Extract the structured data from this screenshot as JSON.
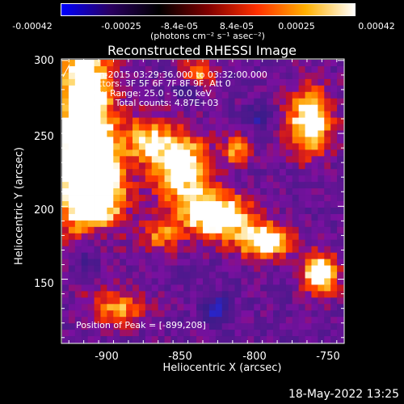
{
  "colorbar": {
    "ticks": [
      "-0.00042",
      "-0.00025",
      "-8.4e-05",
      "8.4e-05",
      "0.00025",
      "0.00042"
    ],
    "tick_values": [
      -0.00042,
      -0.00025,
      -8.4e-05,
      8.4e-05,
      0.00025,
      0.00042
    ],
    "unit_label": "(photons cm⁻² s⁻¹ asec⁻²)",
    "colors": [
      "#0000ff",
      "#2a0060",
      "#000000",
      "#800000",
      "#ff3000",
      "#ffb000",
      "#ffffff"
    ]
  },
  "title": "Reconstructed RHESSI Image",
  "overlay": {
    "time_range": "30-Jan-2015 03:29:36.000 to 03:32:00.000",
    "detectors": "Detectors: 3F 5F 6F 7F 8F 9F, Att 0",
    "energy_range": "Energy Range: 25.0 - 50.0 keV",
    "clean_counts": "Clean     Total counts: 4.87E+03",
    "peak": "Position of Peak = [-899,208]"
  },
  "chart_data": {
    "type": "heatmap",
    "title": "Reconstructed RHESSI Image",
    "xlabel": "Heliocentric X (arcsec)",
    "ylabel": "Heliocentric Y (arcsec)",
    "xlim": [
      -930,
      -740
    ],
    "ylim": [
      106,
      301
    ],
    "x_ticks": [
      -900,
      -850,
      -800,
      -750
    ],
    "x_tick_labels": [
      "-900",
      "-850",
      "-800",
      "-750"
    ],
    "y_ticks": [
      150,
      200,
      250,
      300
    ],
    "y_tick_labels": [
      "150",
      "200",
      "250",
      "300"
    ],
    "value_range": [
      -0.00042,
      0.00042
    ],
    "peak_position": [
      -899,
      208
    ]
  },
  "timestamp": "18-May-2022 13:25"
}
